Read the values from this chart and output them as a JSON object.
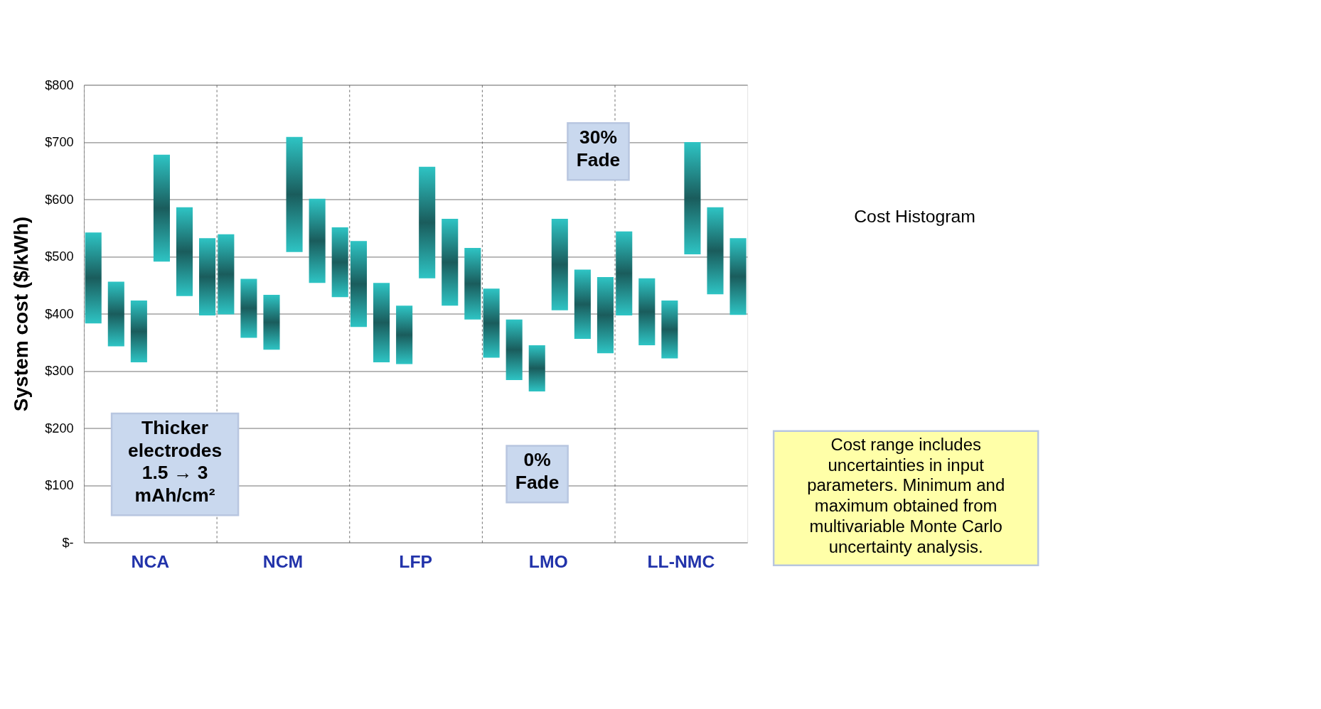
{
  "chart_data": {
    "type": "bar",
    "ylabel": "System cost ($/kWh)",
    "categories": [
      "NCA",
      "NCM",
      "LFP",
      "LMO",
      "LL-NMC"
    ],
    "series": [
      {
        "color": "#2ec4c4",
        "base": [
          383,
          399,
          377,
          323,
          397
        ],
        "values": [
          159,
          140,
          150,
          121,
          147
        ]
      },
      {
        "color": "#2ec4c4",
        "base": [
          343,
          358,
          315,
          284,
          345
        ],
        "values": [
          113,
          103,
          139,
          106,
          117
        ]
      },
      {
        "color": "#2ec4c4",
        "base": [
          315,
          337,
          312,
          264,
          322
        ],
        "values": [
          108,
          96,
          102,
          81,
          101
        ]
      },
      {
        "color": "#2ec4c4",
        "base": [
          491,
          508,
          462,
          406,
          504
        ],
        "values": [
          187,
          201,
          195,
          160,
          196
        ]
      },
      {
        "color": "#2ec4c4",
        "base": [
          431,
          454,
          414,
          356,
          434
        ],
        "values": [
          155,
          147,
          152,
          121,
          152
        ]
      },
      {
        "color": "#2ec4c4",
        "base": [
          397,
          429,
          390,
          331,
          398
        ],
        "values": [
          135,
          122,
          125,
          133,
          134
        ]
      }
    ],
    "ylim": [
      0,
      800
    ],
    "yticks": [
      {
        "value": 0,
        "label": "$-"
      },
      {
        "value": 100,
        "label": "$100"
      },
      {
        "value": 200,
        "label": "$200"
      },
      {
        "value": 300,
        "label": "$300"
      },
      {
        "value": 400,
        "label": "$400"
      },
      {
        "value": 500,
        "label": "$500"
      },
      {
        "value": 600,
        "label": "$600"
      },
      {
        "value": 700,
        "label": "$700"
      },
      {
        "value": 800,
        "label": "$800"
      }
    ],
    "grid": true,
    "annotations": [
      "Thicker electrodes 1.5 → 3 mAh/cm²",
      "0% Fade",
      "30% Fade",
      "Cost Histogram",
      "Cost range includes uncertainties in input parameters.  Minimum and maximum obtained from multivariable Monte Carlo uncertainty analysis."
    ]
  }
}
